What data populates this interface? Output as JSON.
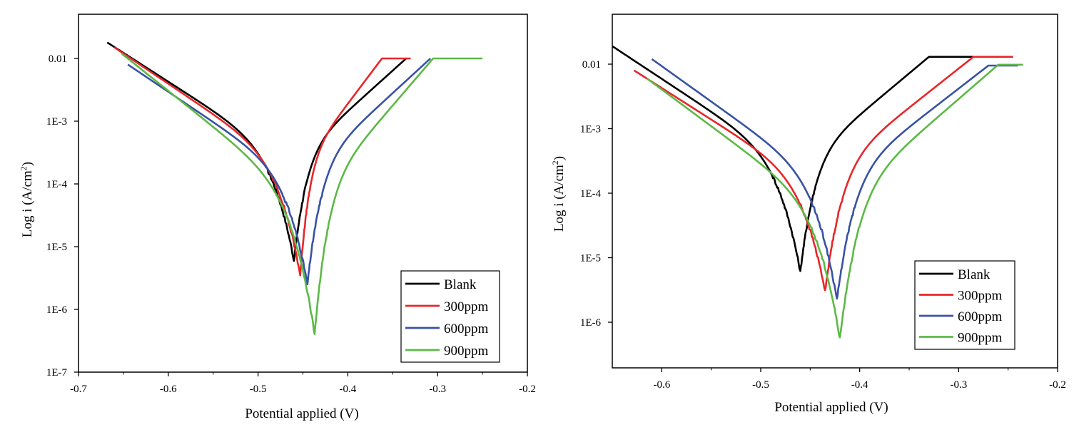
{
  "chart_data": [
    {
      "type": "line",
      "title": "",
      "xlabel": "Potential applied (V)",
      "ylabel_main": "Log i (A/cm",
      "ylabel_sup": "2",
      "ylabel_close": ")",
      "yscale": "log",
      "xlim": [
        -0.7,
        -0.2
      ],
      "ylim": [
        1e-07,
        0.05
      ],
      "xticks": [
        -0.7,
        -0.6,
        -0.5,
        -0.4,
        -0.3,
        -0.2
      ],
      "xtick_labels": [
        "-0.7",
        "-0.6",
        "-0.5",
        "-0.4",
        "-0.3",
        "-0.2"
      ],
      "yticks": [
        1e-07,
        1e-06,
        1e-05,
        0.0001,
        0.001,
        0.01
      ],
      "ytick_labels": [
        "1E-7",
        "1E-6",
        "1E-5",
        "1E-4",
        "1E-3",
        "0.01"
      ],
      "legend_position": "bottom-right",
      "series": [
        {
          "name": "Blank",
          "color": "#000000",
          "ecorr": -0.46,
          "imin": 6e-06,
          "start": -0.668,
          "i_start": 0.018,
          "cap_start": -0.335,
          "cap_end": -0.335,
          "i_cap": 0.01
        },
        {
          "name": "300ppm",
          "color": "#e8262a",
          "ecorr": -0.453,
          "imin": 3.5e-06,
          "start": -0.66,
          "i_start": 0.015,
          "cap_start": -0.362,
          "cap_end": -0.33,
          "i_cap": 0.01
        },
        {
          "name": "600ppm",
          "color": "#3852a4",
          "ecorr": -0.445,
          "imin": 2.5e-06,
          "start": -0.645,
          "i_start": 0.008,
          "cap_start": -0.308,
          "cap_end": -0.308,
          "i_cap": 0.01
        },
        {
          "name": "900ppm",
          "color": "#5cb946",
          "ecorr": -0.437,
          "imin": 4e-07,
          "start": -0.652,
          "i_start": 0.012,
          "cap_start": -0.305,
          "cap_end": -0.25,
          "i_cap": 0.01
        }
      ]
    },
    {
      "type": "line",
      "title": "",
      "xlabel": "Potential applied (V)",
      "ylabel_main": "Log i (A/cm",
      "ylabel_sup": "2",
      "ylabel_close": ")",
      "yscale": "log",
      "xlim": [
        -0.65,
        -0.2
      ],
      "ylim": [
        1.2e-07,
        0.05
      ],
      "xticks": [
        -0.6,
        -0.5,
        -0.4,
        -0.3,
        -0.2
      ],
      "xtick_labels": [
        "-0.6",
        "-0.5",
        "-0.4",
        "-0.3",
        "-0.2"
      ],
      "yticks": [
        1e-06,
        1e-05,
        0.0001,
        0.001,
        0.01
      ],
      "ytick_labels": [
        "1E-6",
        "1E-5",
        "1E-4",
        "1E-3",
        "0.01"
      ],
      "legend_position": "bottom-right",
      "series": [
        {
          "name": "Blank",
          "color": "#000000",
          "ecorr": -0.46,
          "imin": 6e-06,
          "start": -0.65,
          "i_start": 0.019,
          "cap_start": -0.33,
          "cap_end": -0.285,
          "i_cap": 0.013
        },
        {
          "name": "300ppm",
          "color": "#e8262a",
          "ecorr": -0.435,
          "imin": 3e-06,
          "start": -0.628,
          "i_start": 0.008,
          "cap_start": -0.285,
          "cap_end": -0.245,
          "i_cap": 0.013
        },
        {
          "name": "600ppm",
          "color": "#3852a4",
          "ecorr": -0.423,
          "imin": 2.2e-06,
          "start": -0.61,
          "i_start": 0.012,
          "cap_start": -0.27,
          "cap_end": -0.24,
          "i_cap": 0.0095
        },
        {
          "name": "900ppm",
          "color": "#5cb946",
          "ecorr": -0.42,
          "imin": 5.5e-07,
          "start": -0.615,
          "i_start": 0.006,
          "cap_start": -0.26,
          "cap_end": -0.235,
          "i_cap": 0.0098
        }
      ]
    }
  ]
}
